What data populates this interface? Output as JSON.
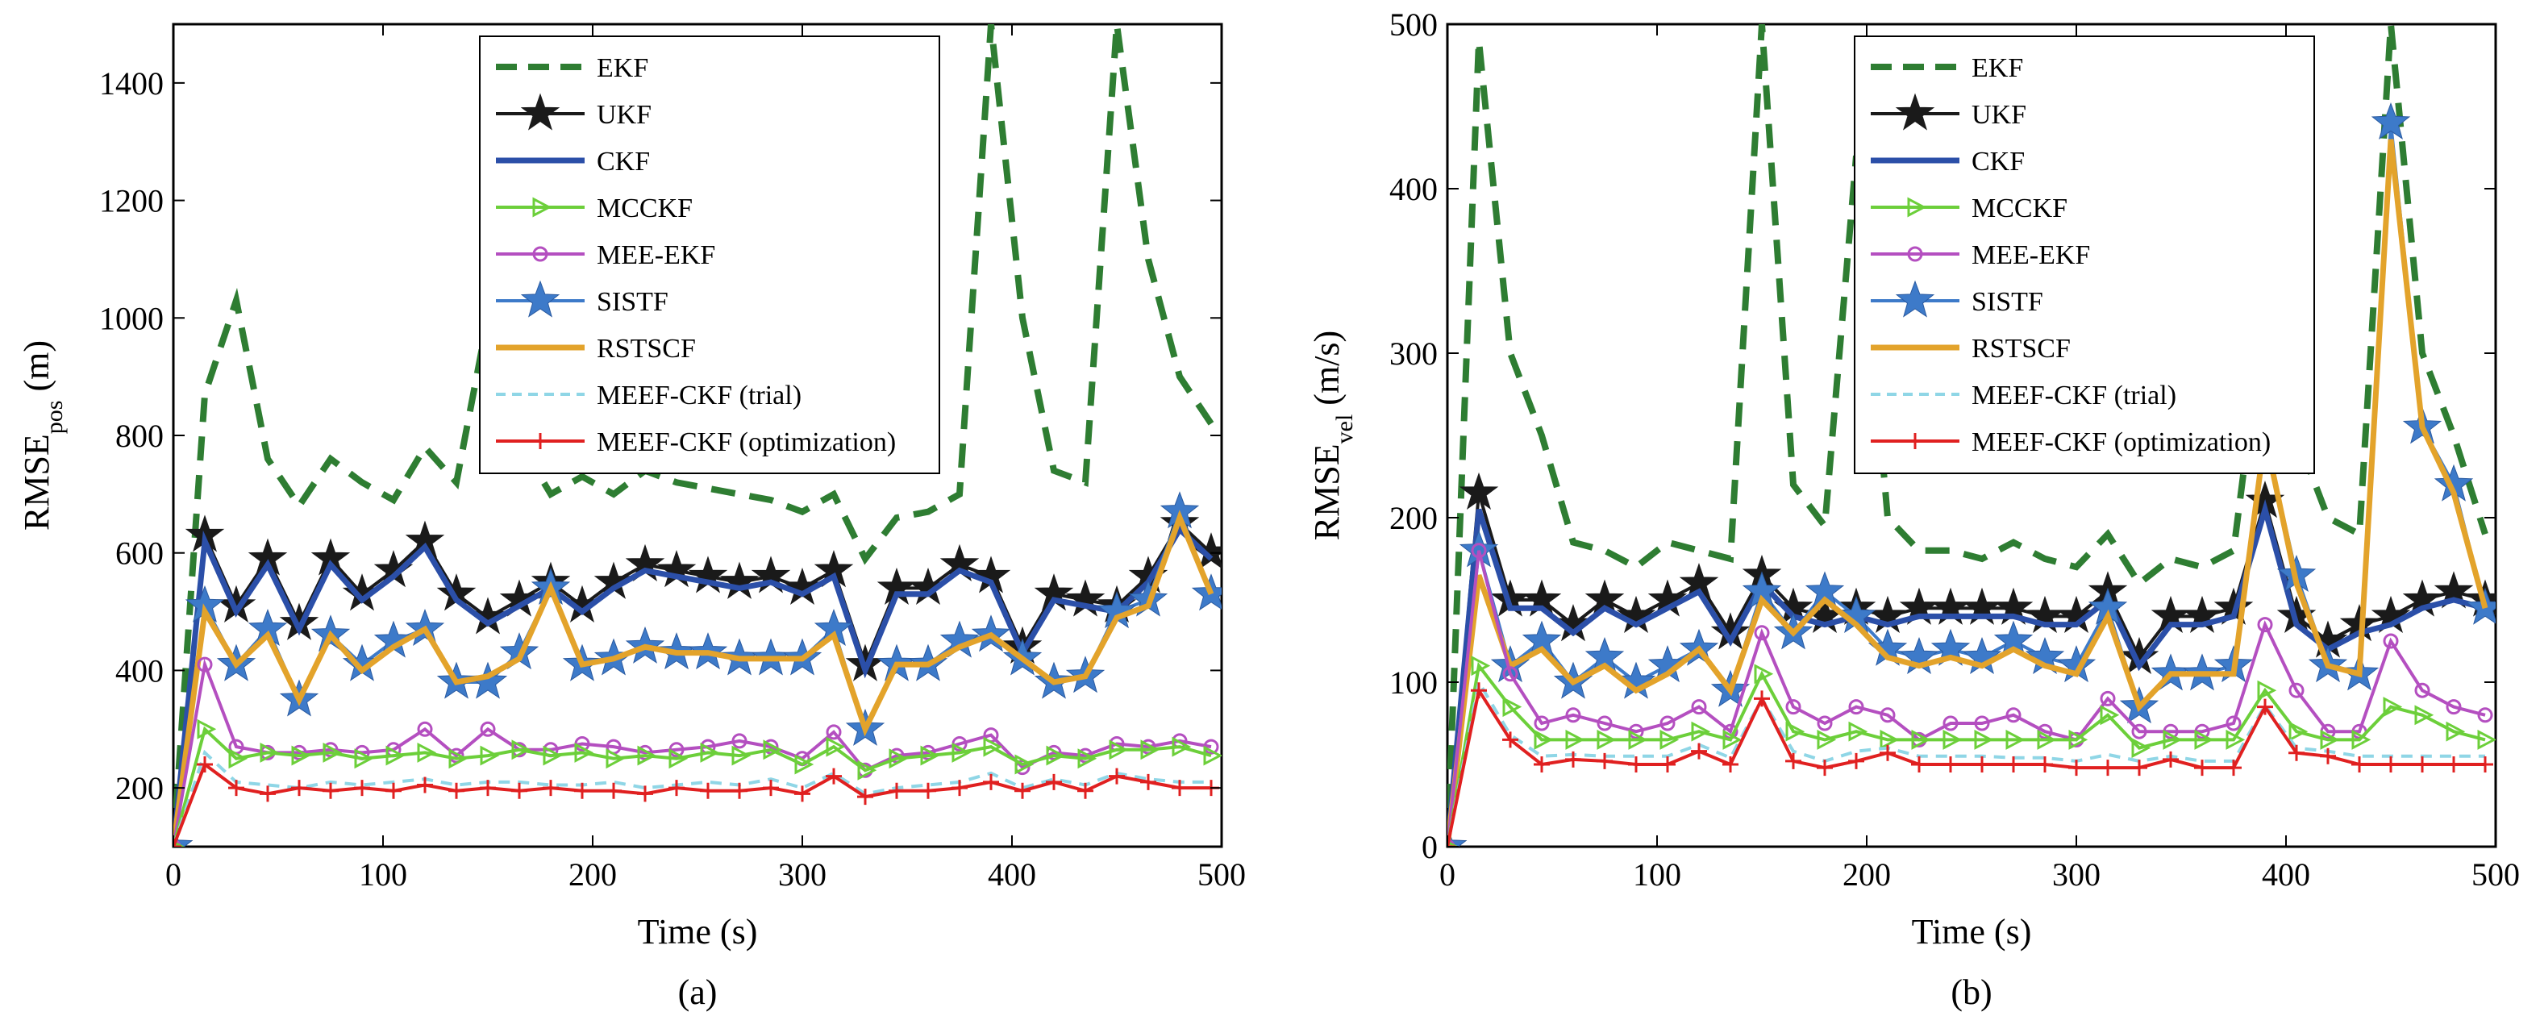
{
  "figure": {
    "captions": [
      "(a)",
      "(b)"
    ]
  },
  "legend": {
    "entries": [
      "EKF",
      "UKF",
      "CKF",
      "MCCKF",
      "MEE-EKF",
      "SISTF",
      "RSTSCF",
      "MEEF-CKF (trial)",
      "MEEF-CKF (optimization)"
    ]
  },
  "series_styles": [
    {
      "name": "EKF",
      "color": "#2e7d32",
      "dash": "dashed",
      "marker": "none"
    },
    {
      "name": "UKF",
      "color": "#1a1a1a",
      "dash": "solid",
      "marker": "star5"
    },
    {
      "name": "CKF",
      "color": "#2b4fa8",
      "dash": "solid",
      "marker": "none"
    },
    {
      "name": "MCCKF",
      "color": "#6ccf3a",
      "dash": "solid",
      "marker": "triangle-right"
    },
    {
      "name": "MEE-EKF",
      "color": "#b44fc0",
      "dash": "solid",
      "marker": "circle"
    },
    {
      "name": "SISTF",
      "color": "#3d7ac9",
      "dash": "solid",
      "marker": "star6"
    },
    {
      "name": "RSTSCF",
      "color": "#e3a32b",
      "dash": "solid",
      "marker": "none"
    },
    {
      "name": "MEEF-CKF (trial)",
      "color": "#8fd6e6",
      "dash": "dashed",
      "marker": "none"
    },
    {
      "name": "MEEF-CKF (optimization)",
      "color": "#e02020",
      "dash": "solid",
      "marker": "plus"
    }
  ],
  "chart_data": [
    {
      "type": "line",
      "caption": "(a)",
      "xlabel": "Time (s)",
      "ylabel_main": "RMSE",
      "ylabel_sub": "pos",
      "ylabel_unit": " (m)",
      "xlim": [
        0,
        500
      ],
      "ylim": [
        100,
        1500
      ],
      "xticks": [
        0,
        100,
        200,
        300,
        400,
        500
      ],
      "yticks": [
        200,
        400,
        600,
        800,
        1000,
        1200,
        1400
      ],
      "x": [
        0,
        15,
        30,
        45,
        60,
        75,
        90,
        105,
        120,
        135,
        150,
        165,
        180,
        195,
        210,
        225,
        240,
        255,
        270,
        285,
        300,
        315,
        330,
        345,
        360,
        375,
        390,
        405,
        420,
        435,
        450,
        465,
        480,
        495
      ],
      "series": [
        {
          "name": "EKF",
          "values": [
            100,
            870,
            1030,
            760,
            680,
            760,
            720,
            690,
            780,
            720,
            1000,
            790,
            700,
            730,
            700,
            740,
            720,
            710,
            700,
            690,
            670,
            700,
            590,
            660,
            670,
            700,
            1500,
            1000,
            740,
            720,
            1500,
            1100,
            900,
            820
          ]
        },
        {
          "name": "UKF",
          "values": [
            100,
            630,
            510,
            590,
            480,
            590,
            530,
            570,
            620,
            530,
            490,
            520,
            550,
            510,
            550,
            580,
            570,
            560,
            550,
            560,
            540,
            570,
            410,
            540,
            540,
            580,
            560,
            440,
            530,
            520,
            510,
            560,
            650,
            600
          ]
        },
        {
          "name": "CKF",
          "values": [
            100,
            620,
            500,
            580,
            470,
            580,
            520,
            560,
            610,
            520,
            480,
            510,
            540,
            500,
            540,
            570,
            560,
            550,
            540,
            550,
            530,
            560,
            400,
            530,
            530,
            570,
            550,
            430,
            520,
            510,
            500,
            550,
            640,
            590
          ]
        },
        {
          "name": "MCCKF",
          "values": [
            100,
            300,
            250,
            260,
            255,
            260,
            250,
            255,
            260,
            250,
            255,
            265,
            255,
            260,
            250,
            255,
            250,
            260,
            255,
            265,
            240,
            270,
            230,
            250,
            255,
            260,
            270,
            240,
            255,
            250,
            265,
            265,
            270,
            255
          ]
        },
        {
          "name": "MEE-EKF",
          "values": [
            100,
            410,
            270,
            260,
            260,
            265,
            260,
            265,
            300,
            255,
            300,
            265,
            265,
            275,
            270,
            260,
            265,
            270,
            280,
            270,
            250,
            295,
            230,
            255,
            260,
            275,
            290,
            235,
            260,
            255,
            275,
            270,
            280,
            270
          ]
        },
        {
          "name": "SISTF",
          "values": [
            100,
            510,
            410,
            470,
            350,
            460,
            410,
            450,
            470,
            380,
            380,
            430,
            540,
            410,
            420,
            440,
            430,
            430,
            420,
            420,
            420,
            470,
            300,
            410,
            410,
            450,
            460,
            420,
            380,
            390,
            500,
            520,
            670,
            530
          ]
        },
        {
          "name": "RSTSCF",
          "values": [
            100,
            500,
            410,
            460,
            350,
            460,
            400,
            440,
            470,
            380,
            390,
            420,
            540,
            410,
            420,
            440,
            430,
            430,
            420,
            420,
            420,
            460,
            300,
            410,
            410,
            440,
            460,
            420,
            380,
            390,
            490,
            510,
            660,
            530
          ]
        },
        {
          "name": "MEEF-CKF (trial)",
          "values": [
            100,
            260,
            210,
            205,
            200,
            210,
            205,
            210,
            215,
            205,
            210,
            210,
            205,
            205,
            210,
            200,
            205,
            210,
            205,
            215,
            200,
            225,
            190,
            200,
            205,
            210,
            225,
            200,
            215,
            205,
            225,
            215,
            210,
            210
          ]
        },
        {
          "name": "MEEF-CKF (optimization)",
          "values": [
            100,
            240,
            200,
            190,
            200,
            195,
            200,
            195,
            205,
            195,
            200,
            195,
            200,
            195,
            195,
            190,
            200,
            195,
            195,
            200,
            190,
            220,
            185,
            195,
            195,
            200,
            210,
            195,
            210,
            195,
            220,
            210,
            200,
            200
          ]
        }
      ]
    },
    {
      "type": "line",
      "caption": "(b)",
      "xlabel": "Time (s)",
      "ylabel_main": "RMSE",
      "ylabel_sub": "vel",
      "ylabel_unit": " (m/s)",
      "xlim": [
        0,
        500
      ],
      "ylim": [
        0,
        500
      ],
      "xticks": [
        0,
        100,
        200,
        300,
        400,
        500
      ],
      "yticks": [
        0,
        100,
        200,
        300,
        400,
        500
      ],
      "x": [
        0,
        15,
        30,
        45,
        60,
        75,
        90,
        105,
        120,
        135,
        150,
        165,
        180,
        195,
        210,
        225,
        240,
        255,
        270,
        285,
        300,
        315,
        330,
        345,
        360,
        375,
        390,
        405,
        420,
        435,
        450,
        465,
        480,
        495
      ],
      "series": [
        {
          "name": "EKF",
          "values": [
            0,
            490,
            300,
            250,
            185,
            180,
            170,
            185,
            180,
            175,
            500,
            220,
            195,
            420,
            200,
            180,
            180,
            175,
            185,
            175,
            170,
            190,
            160,
            175,
            170,
            180,
            330,
            250,
            200,
            190,
            500,
            300,
            250,
            190
          ]
        },
        {
          "name": "UKF",
          "values": [
            0,
            215,
            150,
            150,
            135,
            150,
            140,
            150,
            160,
            130,
            165,
            145,
            140,
            145,
            140,
            145,
            145,
            145,
            145,
            140,
            140,
            155,
            115,
            140,
            140,
            145,
            210,
            140,
            125,
            135,
            140,
            150,
            155,
            150
          ]
        },
        {
          "name": "CKF",
          "values": [
            0,
            205,
            145,
            145,
            130,
            145,
            135,
            145,
            155,
            125,
            160,
            140,
            135,
            140,
            135,
            140,
            140,
            140,
            140,
            135,
            135,
            150,
            110,
            135,
            135,
            140,
            205,
            135,
            120,
            130,
            135,
            145,
            150,
            145
          ]
        },
        {
          "name": "MCCKF",
          "values": [
            0,
            110,
            85,
            65,
            65,
            65,
            65,
            65,
            70,
            65,
            105,
            70,
            65,
            70,
            65,
            65,
            65,
            65,
            65,
            65,
            65,
            80,
            60,
            65,
            65,
            65,
            95,
            70,
            65,
            65,
            85,
            80,
            70,
            65
          ]
        },
        {
          "name": "MEE-EKF",
          "values": [
            0,
            180,
            105,
            75,
            80,
            75,
            70,
            75,
            85,
            70,
            130,
            85,
            75,
            85,
            80,
            65,
            75,
            75,
            80,
            70,
            65,
            90,
            70,
            70,
            70,
            75,
            135,
            95,
            70,
            70,
            125,
            95,
            85,
            80
          ]
        },
        {
          "name": "SISTF",
          "values": [
            0,
            180,
            110,
            125,
            100,
            115,
            100,
            110,
            120,
            95,
            155,
            130,
            155,
            140,
            120,
            115,
            120,
            115,
            125,
            115,
            110,
            145,
            85,
            105,
            105,
            110,
            250,
            165,
            110,
            105,
            440,
            255,
            220,
            145
          ]
        },
        {
          "name": "RSTSCF",
          "values": [
            0,
            165,
            110,
            120,
            100,
            110,
            95,
            105,
            120,
            95,
            150,
            130,
            150,
            135,
            115,
            110,
            115,
            110,
            120,
            110,
            105,
            140,
            85,
            105,
            105,
            105,
            250,
            160,
            110,
            105,
            430,
            255,
            215,
            145
          ]
        },
        {
          "name": "MEEF-CKF (trial)",
          "values": [
            0,
            100,
            68,
            55,
            56,
            55,
            55,
            55,
            62,
            54,
            90,
            58,
            52,
            58,
            60,
            55,
            55,
            55,
            54,
            54,
            52,
            56,
            52,
            55,
            52,
            52,
            86,
            60,
            58,
            55,
            55,
            55,
            55,
            55
          ]
        },
        {
          "name": "MEEF-CKF (optimization)",
          "values": [
            0,
            95,
            65,
            50,
            53,
            52,
            50,
            50,
            58,
            50,
            90,
            52,
            48,
            52,
            57,
            50,
            50,
            50,
            50,
            50,
            48,
            48,
            48,
            53,
            48,
            48,
            85,
            57,
            55,
            50,
            50,
            50,
            50,
            50
          ]
        }
      ]
    }
  ]
}
